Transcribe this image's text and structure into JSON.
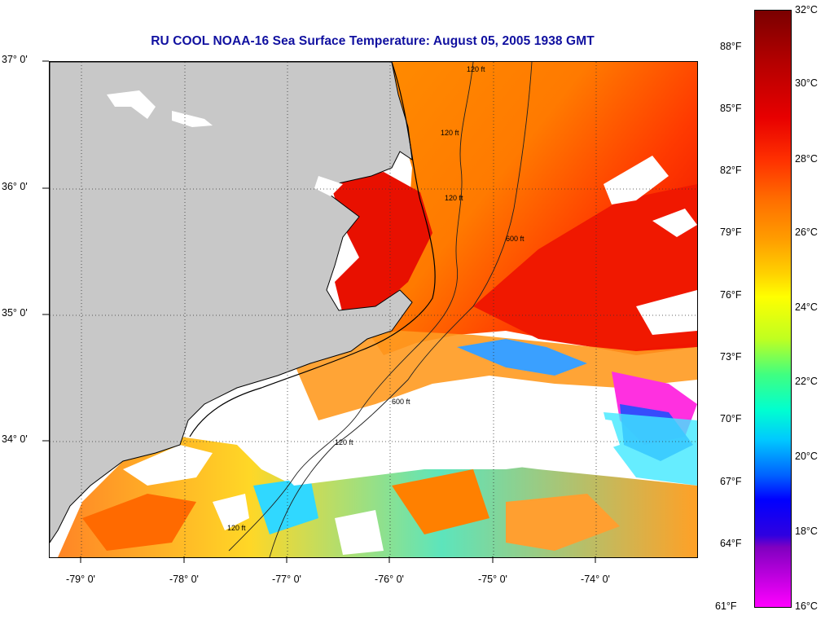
{
  "title": "RU COOL  NOAA-16  Sea Surface Temperature:  August 05, 2005 1938 GMT",
  "latitude_labels": [
    "37° 0'",
    "36° 0'",
    "35° 0'",
    "34° 0'"
  ],
  "longitude_labels": [
    "-79° 0'",
    "-78° 0'",
    "-77° 0'",
    "-76° 0'",
    "-75° 0'",
    "-74° 0'"
  ],
  "colorbar": {
    "fahrenheit": [
      "88°F",
      "85°F",
      "82°F",
      "79°F",
      "76°F",
      "73°F",
      "70°F",
      "67°F",
      "64°F",
      "61°F"
    ],
    "celsius": [
      "32°C",
      "30°C",
      "28°C",
      "26°C",
      "24°C",
      "22°C",
      "20°C",
      "18°C",
      "16°C"
    ],
    "colors": [
      "#7a0000",
      "#e80000",
      "#ff7000",
      "#ffd000",
      "#ffff00",
      "#40ff80",
      "#00c8ff",
      "#0000ff",
      "#8000c0",
      "#ff00ff"
    ]
  },
  "contour_labels": [
    "120 ft",
    "120 ft",
    "120 ft",
    "600 ft",
    "120 ft",
    "600 ft",
    "120 ft"
  ],
  "colors": {
    "title": "#1010a0",
    "land": "#c8c8c8",
    "cloud": "#ffffff",
    "warm_water": "#ff8a00",
    "hot_water": "#f01000"
  }
}
